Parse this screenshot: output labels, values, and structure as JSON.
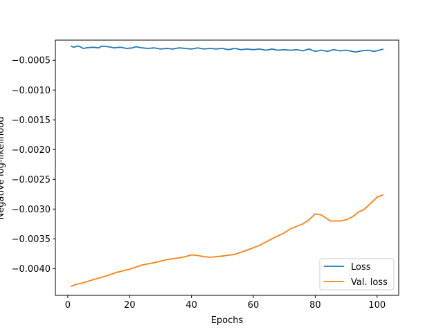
{
  "chart_data": {
    "type": "line",
    "title": "",
    "xlabel": "Epochs",
    "ylabel": "Negative log-likelihood",
    "xlim": [
      -4,
      107
    ],
    "ylim": [
      -0.00445,
      -0.00016
    ],
    "x_ticks": [
      0,
      20,
      40,
      60,
      80,
      100
    ],
    "x_tick_labels": [
      "0",
      "20",
      "40",
      "60",
      "80",
      "100"
    ],
    "y_ticks": [
      -0.004,
      -0.0035,
      -0.003,
      -0.0025,
      -0.002,
      -0.0015,
      -0.001,
      -0.0005
    ],
    "y_tick_labels": [
      "−0.0040",
      "−0.0035",
      "−0.0030",
      "−0.0025",
      "−0.0020",
      "−0.0015",
      "−0.0010",
      "−0.0005"
    ],
    "grid": false,
    "legend_position": "lower-right",
    "series": [
      {
        "name": "Loss",
        "color": "#1f77b4",
        "points": [
          [
            1,
            -0.00026
          ],
          [
            2,
            -0.00028
          ],
          [
            3,
            -0.00026
          ],
          [
            4,
            -0.00027
          ],
          [
            5,
            -0.0003
          ],
          [
            6,
            -0.00029
          ],
          [
            8,
            -0.00028
          ],
          [
            10,
            -0.00029
          ],
          [
            11,
            -0.00026
          ],
          [
            13,
            -0.00027
          ],
          [
            15,
            -0.00029
          ],
          [
            17,
            -0.00028
          ],
          [
            19,
            -0.0003
          ],
          [
            21,
            -0.00029
          ],
          [
            22,
            -0.00027
          ],
          [
            24,
            -0.00029
          ],
          [
            26,
            -0.0003
          ],
          [
            28,
            -0.00029
          ],
          [
            30,
            -0.00031
          ],
          [
            32,
            -0.0003
          ],
          [
            34,
            -0.00031
          ],
          [
            36,
            -0.00029
          ],
          [
            38,
            -0.0003
          ],
          [
            40,
            -0.00031
          ],
          [
            42,
            -0.00029
          ],
          [
            44,
            -0.00031
          ],
          [
            46,
            -0.0003
          ],
          [
            48,
            -0.00031
          ],
          [
            50,
            -0.0003
          ],
          [
            52,
            -0.00032
          ],
          [
            54,
            -0.0003
          ],
          [
            56,
            -0.00032
          ],
          [
            58,
            -0.00031
          ],
          [
            60,
            -0.00032
          ],
          [
            62,
            -0.00031
          ],
          [
            64,
            -0.00033
          ],
          [
            66,
            -0.00031
          ],
          [
            68,
            -0.00033
          ],
          [
            70,
            -0.00032
          ],
          [
            72,
            -0.00033
          ],
          [
            74,
            -0.00032
          ],
          [
            76,
            -0.00034
          ],
          [
            78,
            -0.00031
          ],
          [
            80,
            -0.00035
          ],
          [
            82,
            -0.00033
          ],
          [
            84,
            -0.00035
          ],
          [
            86,
            -0.00032
          ],
          [
            88,
            -0.00034
          ],
          [
            90,
            -0.00033
          ],
          [
            92,
            -0.00035
          ],
          [
            93,
            -0.00036
          ],
          [
            95,
            -0.00034
          ],
          [
            97,
            -0.00033
          ],
          [
            99,
            -0.00035
          ],
          [
            100,
            -0.00034
          ],
          [
            102,
            -0.00031
          ]
        ]
      },
      {
        "name": "Val. loss",
        "color": "#ff7f0e",
        "points": [
          [
            1,
            -0.0043
          ],
          [
            2,
            -0.00428
          ],
          [
            3,
            -0.00426
          ],
          [
            5,
            -0.00424
          ],
          [
            8,
            -0.00419
          ],
          [
            12,
            -0.00413
          ],
          [
            16,
            -0.00406
          ],
          [
            20,
            -0.00401
          ],
          [
            24,
            -0.00394
          ],
          [
            28,
            -0.0039
          ],
          [
            32,
            -0.00385
          ],
          [
            36,
            -0.00382
          ],
          [
            38,
            -0.0038
          ],
          [
            40,
            -0.00377
          ],
          [
            42,
            -0.00378
          ],
          [
            44,
            -0.0038
          ],
          [
            46,
            -0.00381
          ],
          [
            50,
            -0.00379
          ],
          [
            54,
            -0.00376
          ],
          [
            58,
            -0.00369
          ],
          [
            62,
            -0.00361
          ],
          [
            66,
            -0.0035
          ],
          [
            70,
            -0.0034
          ],
          [
            72,
            -0.00333
          ],
          [
            76,
            -0.00325
          ],
          [
            78,
            -0.00318
          ],
          [
            80,
            -0.00308
          ],
          [
            82,
            -0.0031
          ],
          [
            84,
            -0.00317
          ],
          [
            85,
            -0.0032
          ],
          [
            88,
            -0.0032
          ],
          [
            90,
            -0.00318
          ],
          [
            92,
            -0.00313
          ],
          [
            94,
            -0.00305
          ],
          [
            96,
            -0.003
          ],
          [
            98,
            -0.0029
          ],
          [
            100,
            -0.0028
          ],
          [
            102,
            -0.00276
          ]
        ]
      }
    ]
  }
}
